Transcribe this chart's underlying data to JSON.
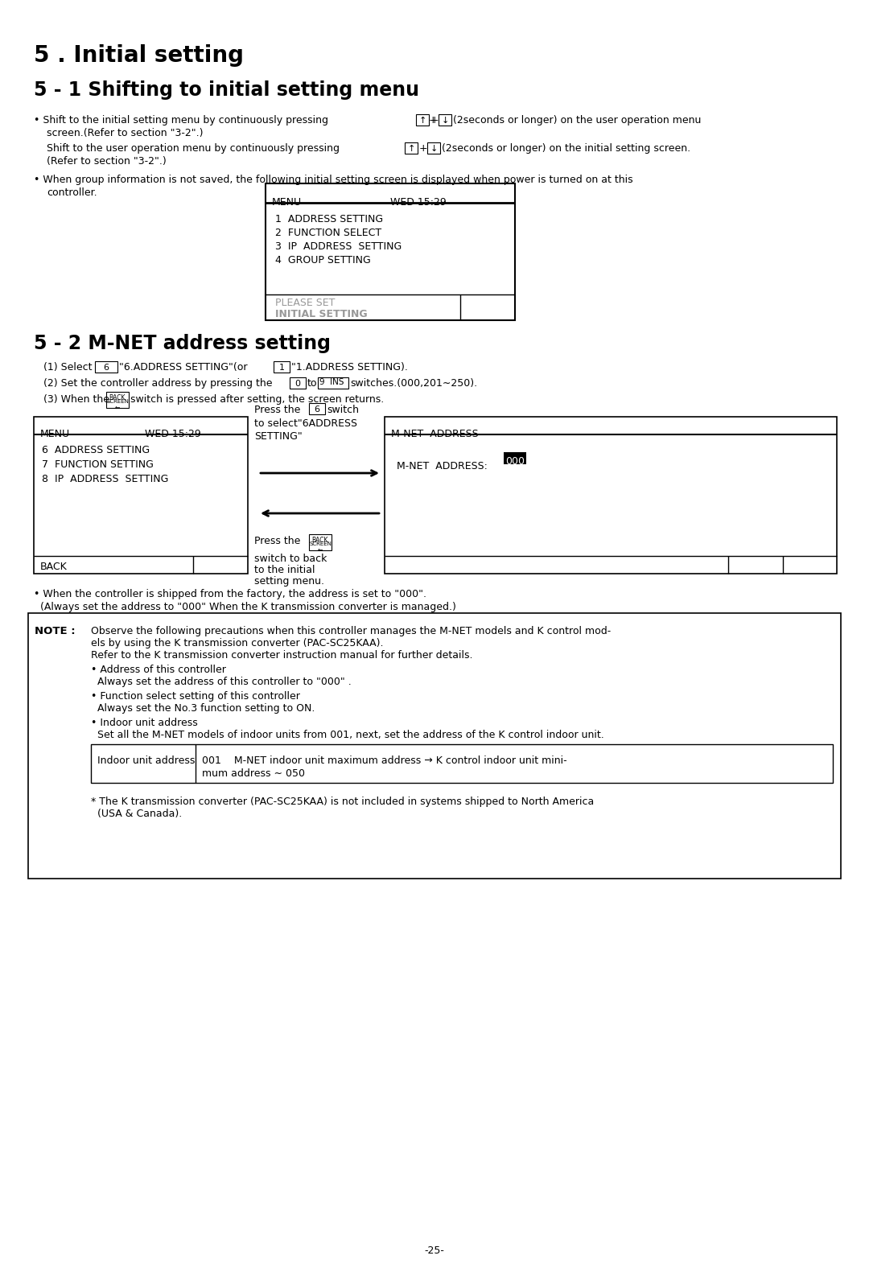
{
  "bg_color": "#ffffff",
  "title1": "5 . Initial setting",
  "title2": "5 - 1 Shifting to initial setting menu",
  "title3": "5 - 2 M-NET address setting",
  "menu_box1_header_left": "MENU",
  "menu_box1_header_right": "WED 15:29",
  "menu_box1_lines": [
    "1  ADDRESS SETTING",
    "2  FUNCTION SELECT",
    "3  IP  ADDRESS  SETTING",
    "4  GROUP SETTING"
  ],
  "menu_box1_footer1": "PLEASE SET",
  "menu_box1_footer2": "INITIAL SETTING",
  "step1_pre": "(1) Select",
  "step1_btn1": "6",
  "step1_mid": "\"6.ADDRESS SETTING\"(or",
  "step1_btn2": "1",
  "step1_post": "\"1.ADDRESS SETTING).",
  "step2_pre": "(2) Set the controller address by pressing the",
  "step2_btn1": "0",
  "step2_to": "to",
  "step2_btn2": "9  INS",
  "step2_post": "switches.(000,201∼250).",
  "step3_pre": "(3) When the",
  "step3_post": "switch is pressed after setting, the screen returns.",
  "diag_press_pre": "Press the",
  "diag_press_btn": "6",
  "diag_press_mid": "switch",
  "diag_press_bot1": "to select\"6ADDRESS",
  "diag_press_bot2": "SETTING\"",
  "menu_box2_header_left": "MENU",
  "menu_box2_header_right": "WED 15:29",
  "menu_box2_lines": [
    "6  ADDRESS SETTING",
    "7  FUNCTION SETTING",
    "8  IP  ADDRESS  SETTING"
  ],
  "menu_box2_footer": "BACK",
  "mnet_header": "M-NET  ADDRESS",
  "mnet_content_pre": "M-NET  ADDRESS: ",
  "mnet_content_val": "000",
  "press_back_pre": "Press the",
  "press_back_line2": "switch to back",
  "press_back_line3": "to the initial",
  "press_back_line4": "setting menu.",
  "note_bullet1": "• When the controller is shipped from the factory, the address is set to \"000\".",
  "note_bullet2": "  (Always set the address to \"000\" When the K transmission converter is managed.)",
  "note_header": "NOTE :",
  "note_line1": "Observe the following precautions when this controller manages the M-NET models and K control mod-",
  "note_line2": "els by using the K transmission converter (PAC-SC25KAA).",
  "note_line3": "Refer to the K transmission converter instruction manual for further details.",
  "note_a1": "• Address of this controller",
  "note_a2": "  Always set the address of this controller to \"000\" .",
  "note_b1": "• Function select setting of this controller",
  "note_b2": "  Always set the No.3 function setting to ON.",
  "note_c1": "• Indoor unit address",
  "note_c2": "  Set all the M-NET models of indoor units from 001, next, set the address of the K control indoor unit.",
  "indoor_label": "Indoor unit address",
  "indoor_c1": "001    M-NET indoor unit maximum address → K control indoor unit mini-",
  "indoor_c2": "mum address ∼ 050",
  "note_star1": "* The K transmission converter (PAC-SC25KAA) is not included in systems shipped to North America",
  "note_star2": "  (USA & Canada).",
  "page_number": "-25-",
  "bullet1_pre": "• Shift to the initial setting menu by continuously pressing",
  "bullet1_post": "(2seconds or longer) on the user operation menu",
  "bullet1_line2": "screen.(Refer to section \"3-2\".)",
  "bullet2_pre": "Shift to the user operation menu by continuously pressing",
  "bullet2_post": "(2seconds or longer) on the initial setting screen.",
  "bullet2_line2": "(Refer to section \"3-2\".)",
  "bullet3_line1": "• When group information is not saved, the following initial setting screen is displayed when power is turned on at this",
  "bullet3_line2": "controller."
}
